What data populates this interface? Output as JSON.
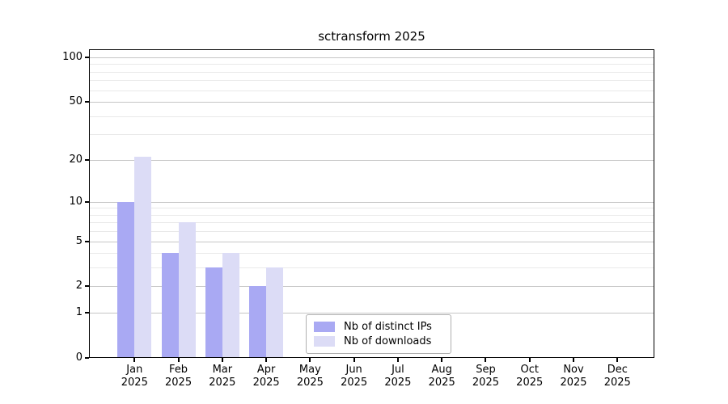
{
  "chart_data": {
    "type": "bar",
    "title": "sctransform 2025",
    "categories": [
      "Jan 2025",
      "Feb 2025",
      "Mar 2025",
      "Apr 2025",
      "May 2025",
      "Jun 2025",
      "Jul 2025",
      "Aug 2025",
      "Sep 2025",
      "Oct 2025",
      "Nov 2025",
      "Dec 2025"
    ],
    "series": [
      {
        "name": "Nb of distinct IPs",
        "color": "#a9a9f3",
        "values": [
          10,
          4,
          3,
          2,
          0,
          0,
          0,
          0,
          0,
          0,
          0,
          0
        ]
      },
      {
        "name": "Nb of downloads",
        "color": "#dcdcf6",
        "values": [
          21,
          7,
          4,
          3,
          0,
          0,
          0,
          0,
          0,
          0,
          0,
          0
        ]
      }
    ],
    "xlabel": "",
    "ylabel": "",
    "y_axis": {
      "scale": "log1p",
      "ticks": [
        0,
        1,
        2,
        5,
        10,
        20,
        50,
        100
      ],
      "minor_gridlines": [
        3,
        4,
        6,
        7,
        8,
        9,
        30,
        40,
        60,
        70,
        80,
        90
      ],
      "ylim": [
        0,
        113
      ]
    },
    "grid": true,
    "legend_position": "inside-bottom-center"
  },
  "colors": {
    "bar_distinct_ips": "#a9a9f3",
    "bar_downloads": "#dcdcf6",
    "grid_major": "#c6c6c6",
    "grid_minor": "#e9e9e9",
    "axis": "#000000",
    "legend_border": "#b0b0b0",
    "background": "#ffffff"
  }
}
